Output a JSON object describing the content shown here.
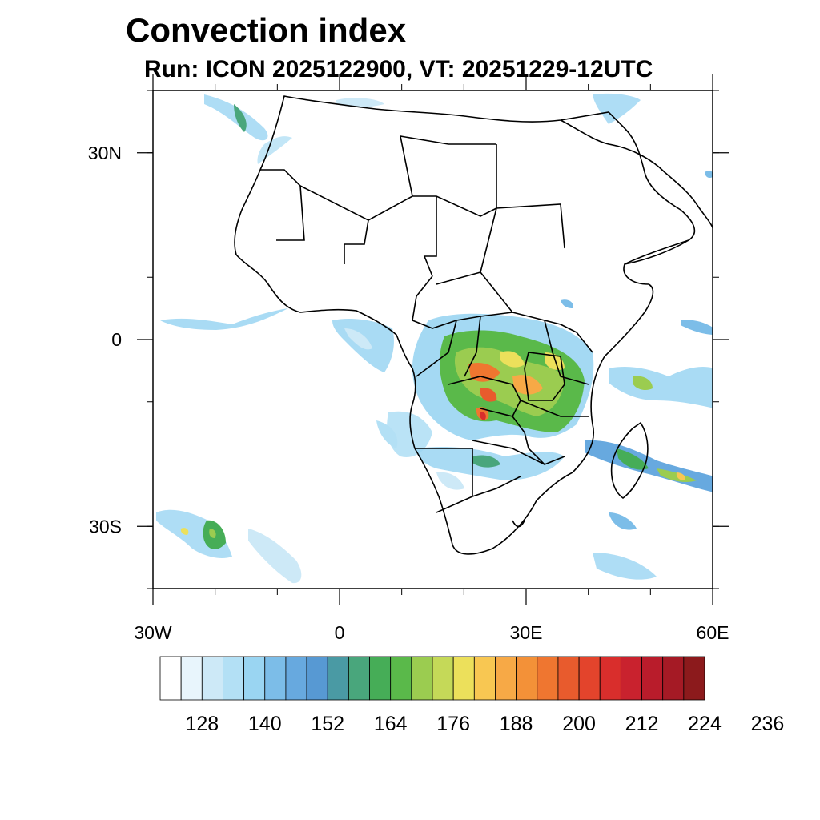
{
  "title": "Convection index",
  "subtitle": "Run: ICON 2025122900,  VT: 20251229-12UTC",
  "map": {
    "lon_range": [
      -30,
      60
    ],
    "lat_range": [
      -40,
      40
    ],
    "lon_ticks": [
      {
        "value": -30,
        "label": "30W"
      },
      {
        "value": 0,
        "label": "0"
      },
      {
        "value": 30,
        "label": "30E"
      },
      {
        "value": 60,
        "label": "60E"
      }
    ],
    "lat_ticks": [
      {
        "value": 30,
        "label": "30N"
      },
      {
        "value": 0,
        "label": "0"
      },
      {
        "value": -30,
        "label": "30S"
      }
    ],
    "field": "Convection index",
    "coastline_color": "#000000"
  },
  "colorbar": {
    "colors": [
      "#ffffff",
      "#e8f5fc",
      "#cde9f7",
      "#b3e0f5",
      "#9ad5f2",
      "#7cbde8",
      "#67a9df",
      "#5799d3",
      "#4a9aa4",
      "#49a67c",
      "#46ad57",
      "#5ab94a",
      "#9bcc50",
      "#c5d958",
      "#ece05b",
      "#f8c752",
      "#f7a946",
      "#f39138",
      "#ef7630",
      "#e85b2d",
      "#e3442c",
      "#d92e2c",
      "#c9222e",
      "#b91c2b",
      "#a51a25",
      "#8c1a1c"
    ],
    "labels": [
      "128",
      "140",
      "152",
      "164",
      "176",
      "188",
      "200",
      "212",
      "224",
      "236"
    ]
  }
}
